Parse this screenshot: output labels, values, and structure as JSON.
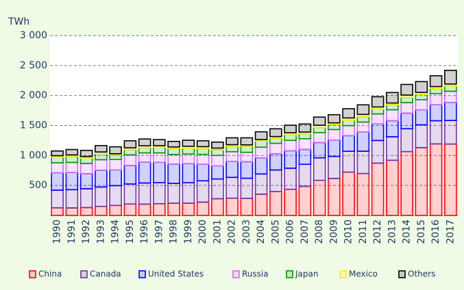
{
  "chart_data": {
    "type": "stacked-bar",
    "y_label": "TWh",
    "categories": [
      "1990",
      "1991",
      "1992",
      "1993",
      "1994",
      "1995",
      "1996",
      "1997",
      "1998",
      "1999",
      "2000",
      "2001",
      "2002",
      "2003",
      "2004",
      "2005",
      "2006",
      "2007",
      "2008",
      "2009",
      "2010",
      "2011",
      "2012",
      "2013",
      "2014",
      "2015",
      "2016",
      "2017"
    ],
    "series": [
      {
        "name": "China",
        "color": "#ff0000",
        "values": [
          127,
          125,
          131,
          151,
          167,
          191,
          188,
          196,
          204,
          204,
          222,
          278,
          288,
          284,
          354,
          397,
          436,
          485,
          585,
          616,
          722,
          699,
          872,
          920,
          1064,
          1130,
          1193,
          1190
        ]
      },
      {
        "name": "Canada",
        "color": "#7030a0",
        "values": [
          294,
          305,
          314,
          323,
          330,
          333,
          353,
          350,
          330,
          341,
          356,
          330,
          347,
          336,
          338,
          361,
          352,
          368,
          376,
          368,
          348,
          372,
          378,
          391,
          382,
          381,
          386,
          394
        ]
      },
      {
        "name": "United States",
        "color": "#0000ff",
        "values": [
          290,
          286,
          250,
          280,
          260,
          310,
          347,
          340,
          323,
          319,
          275,
          217,
          264,
          275,
          268,
          270,
          289,
          248,
          254,
          273,
          260,
          319,
          276,
          268,
          259,
          249,
          267,
          300
        ]
      },
      {
        "name": "Russia",
        "color": "#cc66ff",
        "values": [
          167,
          168,
          172,
          175,
          176,
          176,
          155,
          157,
          159,
          161,
          165,
          176,
          164,
          158,
          178,
          174,
          175,
          179,
          167,
          176,
          168,
          167,
          167,
          183,
          177,
          170,
          187,
          187
        ]
      },
      {
        "name": "Japan",
        "color": "#009900",
        "values": [
          95,
          104,
          89,
          104,
          76,
          91,
          88,
          95,
          103,
          96,
          96,
          94,
          92,
          104,
          103,
          86,
          97,
          84,
          83,
          84,
          91,
          92,
          84,
          85,
          87,
          91,
          85,
          89
        ]
      },
      {
        "name": "Mexico",
        "color": "#ffee00",
        "values": [
          24,
          22,
          27,
          26,
          20,
          28,
          31,
          26,
          24,
          33,
          33,
          28,
          25,
          20,
          25,
          28,
          30,
          27,
          39,
          27,
          37,
          36,
          32,
          28,
          39,
          31,
          31,
          32
        ]
      },
      {
        "name": "Others",
        "color": "#000000",
        "values": [
          78,
          90,
          102,
          106,
          116,
          116,
          113,
          101,
          92,
          100,
          98,
          100,
          115,
          118,
          129,
          129,
          126,
          134,
          136,
          136,
          154,
          160,
          171,
          175,
          177,
          180,
          181,
          228
        ]
      }
    ],
    "ylim": [
      0,
      3000
    ],
    "yticks": [
      500,
      {
        "value": 1000,
        "label": "1 000"
      },
      {
        "value": 1500,
        "label": "1 500"
      },
      {
        "value": 2000,
        "label": "2 000"
      },
      {
        "value": 2500,
        "label": "2 500"
      },
      {
        "value": 3000,
        "label": "3 000"
      }
    ],
    "grid": true,
    "legend": "bottom"
  }
}
